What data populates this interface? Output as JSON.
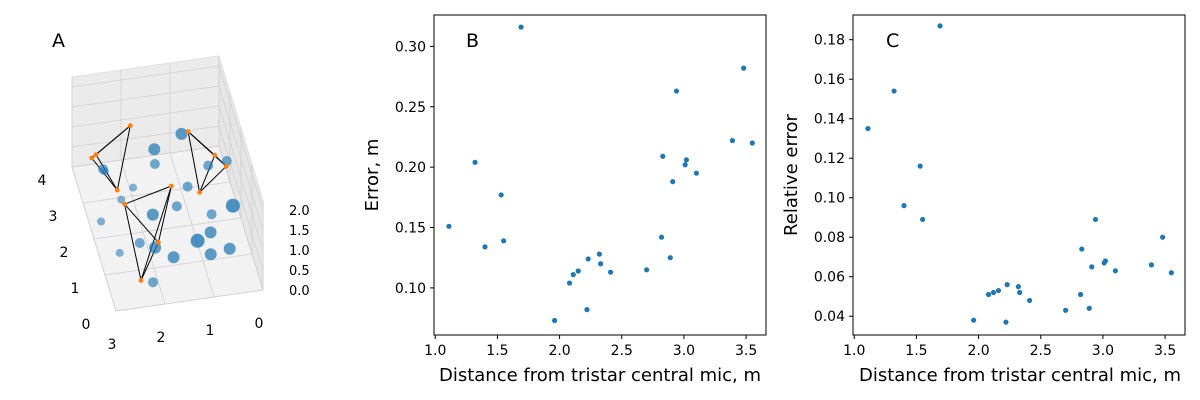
{
  "chart_data": [
    {
      "panel": "A",
      "type": "scatter",
      "kind": "3d",
      "z_ticks": [
        "0.0",
        "0.5",
        "1.0",
        "1.5",
        "2.0"
      ],
      "x_ticks": [
        "0",
        "1",
        "2",
        "3"
      ],
      "y_ticks": [
        "0",
        "1",
        "2",
        "3",
        "4"
      ],
      "colors": {
        "points": "#1f77b4",
        "mics": "#ff7f0e",
        "edges": "#000000"
      }
    },
    {
      "panel": "B",
      "type": "scatter",
      "xlabel": "Distance from tristar central mic, m",
      "ylabel": "Error, m",
      "xlim": [
        0.99,
        3.66
      ],
      "ylim": [
        0.061,
        0.326
      ],
      "x_ticks": [
        "1.0",
        "1.5",
        "2.0",
        "2.5",
        "3.0",
        "3.5"
      ],
      "y_ticks": [
        "0.10",
        "0.15",
        "0.20",
        "0.25",
        "0.30"
      ],
      "color": "#1f77b4",
      "points": [
        [
          1.11,
          0.151
        ],
        [
          1.32,
          0.204
        ],
        [
          1.4,
          0.134
        ],
        [
          1.53,
          0.177
        ],
        [
          1.55,
          0.139
        ],
        [
          1.69,
          0.316
        ],
        [
          1.96,
          0.073
        ],
        [
          2.08,
          0.104
        ],
        [
          2.11,
          0.111
        ],
        [
          2.15,
          0.114
        ],
        [
          2.22,
          0.082
        ],
        [
          2.23,
          0.124
        ],
        [
          2.32,
          0.128
        ],
        [
          2.33,
          0.12
        ],
        [
          2.41,
          0.113
        ],
        [
          2.7,
          0.115
        ],
        [
          2.82,
          0.142
        ],
        [
          2.83,
          0.209
        ],
        [
          2.89,
          0.125
        ],
        [
          2.91,
          0.188
        ],
        [
          2.94,
          0.263
        ],
        [
          3.01,
          0.202
        ],
        [
          3.02,
          0.206
        ],
        [
          3.1,
          0.195
        ],
        [
          3.39,
          0.222
        ],
        [
          3.48,
          0.282
        ],
        [
          3.55,
          0.22
        ]
      ]
    },
    {
      "panel": "C",
      "type": "scatter",
      "xlabel": "Distance from tristar central mic, m",
      "ylabel": "Relative error",
      "xlim": [
        0.99,
        3.66
      ],
      "ylim": [
        0.0305,
        0.1925
      ],
      "x_ticks": [
        "1.0",
        "1.5",
        "2.0",
        "2.5",
        "3.0",
        "3.5"
      ],
      "y_ticks": [
        "0.04",
        "0.06",
        "0.08",
        "0.10",
        "0.12",
        "0.14",
        "0.16",
        "0.18"
      ],
      "color": "#1f77b4",
      "points": [
        [
          1.11,
          0.135
        ],
        [
          1.32,
          0.154
        ],
        [
          1.4,
          0.096
        ],
        [
          1.53,
          0.116
        ],
        [
          1.55,
          0.089
        ],
        [
          1.69,
          0.187
        ],
        [
          1.96,
          0.038
        ],
        [
          2.08,
          0.051
        ],
        [
          2.12,
          0.052
        ],
        [
          2.16,
          0.053
        ],
        [
          2.22,
          0.037
        ],
        [
          2.23,
          0.056
        ],
        [
          2.32,
          0.055
        ],
        [
          2.33,
          0.052
        ],
        [
          2.41,
          0.048
        ],
        [
          2.7,
          0.043
        ],
        [
          2.82,
          0.051
        ],
        [
          2.83,
          0.074
        ],
        [
          2.89,
          0.044
        ],
        [
          2.91,
          0.065
        ],
        [
          2.94,
          0.089
        ],
        [
          3.01,
          0.067
        ],
        [
          3.02,
          0.068
        ],
        [
          3.1,
          0.063
        ],
        [
          3.39,
          0.066
        ],
        [
          3.48,
          0.08
        ],
        [
          3.55,
          0.062
        ]
      ]
    }
  ]
}
